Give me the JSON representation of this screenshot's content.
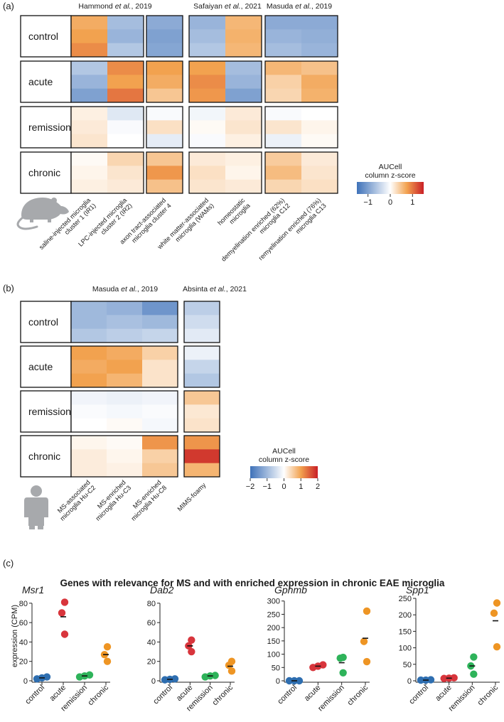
{
  "panel_a": {
    "label": "(a)",
    "conditions": [
      "control",
      "acute",
      "remission",
      "chronic"
    ],
    "sources": [
      {
        "name": "Hammond",
        "suffix": ", 2019"
      },
      {
        "name": "Safaiyan",
        "suffix": ", 2021"
      },
      {
        "name": "Masuda",
        "suffix": ", 2019"
      }
    ],
    "et_al": "et al.",
    "columns": [
      "saline-injected microglia\ncluster 1 (IR1)",
      "LPC-injected microglia\ncluster 2 (IR2)",
      "axon tract-associated\nmicroglia cluster 4",
      "white matter-associated\nmicroglia (WAMs)",
      "homeostatic\nmicroglia",
      "demyelination enriched (62%)\nmicroglia C12",
      "remyelination enriched (76%)\nmicroglia C13"
    ],
    "groups": [
      [
        0,
        1
      ],
      [
        2
      ],
      [
        3,
        4
      ],
      [
        5,
        6
      ]
    ],
    "z": [
      [
        [
          0.8,
          -0.7,
          -0.9,
          -0.8,
          0.7,
          -0.9,
          -0.9
        ],
        [
          0.9,
          -0.8,
          -1.0,
          -0.7,
          0.75,
          -0.8,
          -0.85
        ],
        [
          1.0,
          -0.6,
          -0.95,
          -0.6,
          0.7,
          -0.7,
          -0.8
        ]
      ],
      [
        [
          -0.6,
          1.0,
          0.9,
          0.9,
          -0.7,
          0.7,
          0.6
        ],
        [
          -0.8,
          0.9,
          0.8,
          1.0,
          -0.8,
          0.45,
          0.8
        ],
        [
          -1.0,
          1.1,
          0.55,
          0.95,
          -1.0,
          0.4,
          0.75
        ]
      ],
      [
        [
          0.15,
          -0.25,
          -0.05,
          -0.1,
          0.2,
          -0.05,
          0.0
        ],
        [
          0.2,
          -0.05,
          0.3,
          0.05,
          0.25,
          0.25,
          0.1
        ],
        [
          0.25,
          0.0,
          -0.2,
          -0.05,
          0.15,
          -0.15,
          0.05
        ]
      ],
      [
        [
          0.05,
          0.4,
          0.55,
          0.2,
          0.15,
          0.5,
          0.2
        ],
        [
          0.1,
          0.25,
          0.95,
          0.3,
          0.1,
          0.65,
          0.25
        ],
        [
          0.15,
          0.2,
          0.6,
          0.25,
          0.2,
          0.4,
          0.3
        ]
      ]
    ],
    "legend": {
      "title": "AUCell\ncolumn z-score",
      "min": -1.5,
      "max": 1.5,
      "ticks": [
        -1,
        0,
        1
      ]
    }
  },
  "panel_b": {
    "label": "(b)",
    "conditions": [
      "control",
      "acute",
      "remission",
      "chronic"
    ],
    "sources": [
      {
        "name": "Masuda",
        "suffix": ", 2019"
      },
      {
        "name": "Absinta",
        "suffix": ", 2021"
      }
    ],
    "et_al": "et al.",
    "columns": [
      "MS-associated\nmicroglia Hu-C2",
      "MS-enriched\nmicroglia Hu-C3",
      "MS-enriched\nmicroglia Hu-C8",
      "MIMS-foamy"
    ],
    "groups": [
      [
        0,
        1,
        2
      ],
      [
        3
      ]
    ],
    "z": [
      [
        [
          -1.0,
          -1.1,
          -1.5,
          -0.7
        ],
        [
          -1.0,
          -0.9,
          -1.0,
          -0.5
        ],
        [
          -0.8,
          -0.7,
          -0.6,
          -0.3
        ]
      ],
      [
        [
          1.0,
          0.9,
          0.5,
          -0.2
        ],
        [
          0.9,
          1.0,
          0.3,
          -0.6
        ],
        [
          1.0,
          0.8,
          0.3,
          -0.8
        ]
      ],
      [
        [
          -0.15,
          -0.2,
          -0.15,
          0.6
        ],
        [
          -0.05,
          -0.1,
          -0.05,
          0.25
        ],
        [
          0.0,
          0.05,
          -0.1,
          0.3
        ]
      ],
      [
        [
          0.1,
          0.05,
          1.1,
          1.1
        ],
        [
          0.2,
          0.1,
          0.5,
          1.8
        ],
        [
          0.2,
          0.15,
          0.6,
          0.8
        ]
      ]
    ],
    "legend": {
      "title": "AUCell\ncolumn z-score",
      "min": -2,
      "max": 2,
      "ticks": [
        -2,
        -1,
        0,
        1,
        2
      ]
    }
  },
  "panel_c": {
    "label": "(c)",
    "title": "Genes with relevance for MS and with enriched expression in chronic EAE microglia",
    "ylabel": "expression (CPM)"
  },
  "chart_data": [
    {
      "type": "scatter",
      "title": "Msr1",
      "ylabel": "expression (CPM)",
      "categories": [
        "control",
        "acute",
        "remission",
        "chronic"
      ],
      "ylim": [
        0,
        85
      ],
      "yticks": [
        0,
        20,
        40,
        60,
        80
      ],
      "colors": [
        "#2e6eb0",
        "#d8353c",
        "#2eb35a",
        "#ee9524"
      ],
      "points": [
        [
          2,
          3,
          4
        ],
        [
          48,
          70,
          81
        ],
        [
          4,
          5,
          6
        ],
        [
          20,
          27,
          35
        ]
      ],
      "means": [
        3,
        66,
        5,
        27
      ]
    },
    {
      "type": "scatter",
      "title": "Dab2",
      "categories": [
        "control",
        "acute",
        "remission",
        "chronic"
      ],
      "ylim": [
        0,
        85
      ],
      "yticks": [
        0,
        20,
        40,
        60,
        80
      ],
      "colors": [
        "#2e6eb0",
        "#d8353c",
        "#2eb35a",
        "#ee9524"
      ],
      "points": [
        [
          1,
          1.5,
          2
        ],
        [
          30,
          36,
          42
        ],
        [
          4,
          5,
          5.5
        ],
        [
          10,
          16,
          20
        ]
      ],
      "means": [
        1.5,
        36,
        5,
        15
      ]
    },
    {
      "type": "scatter",
      "title": "Gpnmb",
      "categories": [
        "control",
        "acute",
        "remission",
        "chronic"
      ],
      "ylim": [
        0,
        310
      ],
      "yticks": [
        0,
        50,
        100,
        150,
        200,
        250,
        300
      ],
      "colors": [
        "#2e6eb0",
        "#d8353c",
        "#2eb35a",
        "#ee9524"
      ],
      "points": [
        [
          0,
          0,
          0
        ],
        [
          50,
          55,
          60
        ],
        [
          30,
          85,
          88
        ],
        [
          72,
          148,
          262
        ]
      ],
      "means": [
        0,
        55,
        68,
        160
      ]
    },
    {
      "type": "scatter",
      "title": "Spp1",
      "categories": [
        "control",
        "acute",
        "remission",
        "chronic"
      ],
      "ylim": [
        0,
        250
      ],
      "yticks": [
        0,
        50,
        100,
        150,
        200,
        250
      ],
      "colors": [
        "#2e6eb0",
        "#d8353c",
        "#2eb35a",
        "#ee9524"
      ],
      "points": [
        [
          2,
          2,
          3
        ],
        [
          7,
          8,
          9
        ],
        [
          20,
          45,
          72
        ],
        [
          103,
          205,
          236
        ]
      ],
      "means": [
        2,
        8,
        45,
        182
      ]
    }
  ]
}
